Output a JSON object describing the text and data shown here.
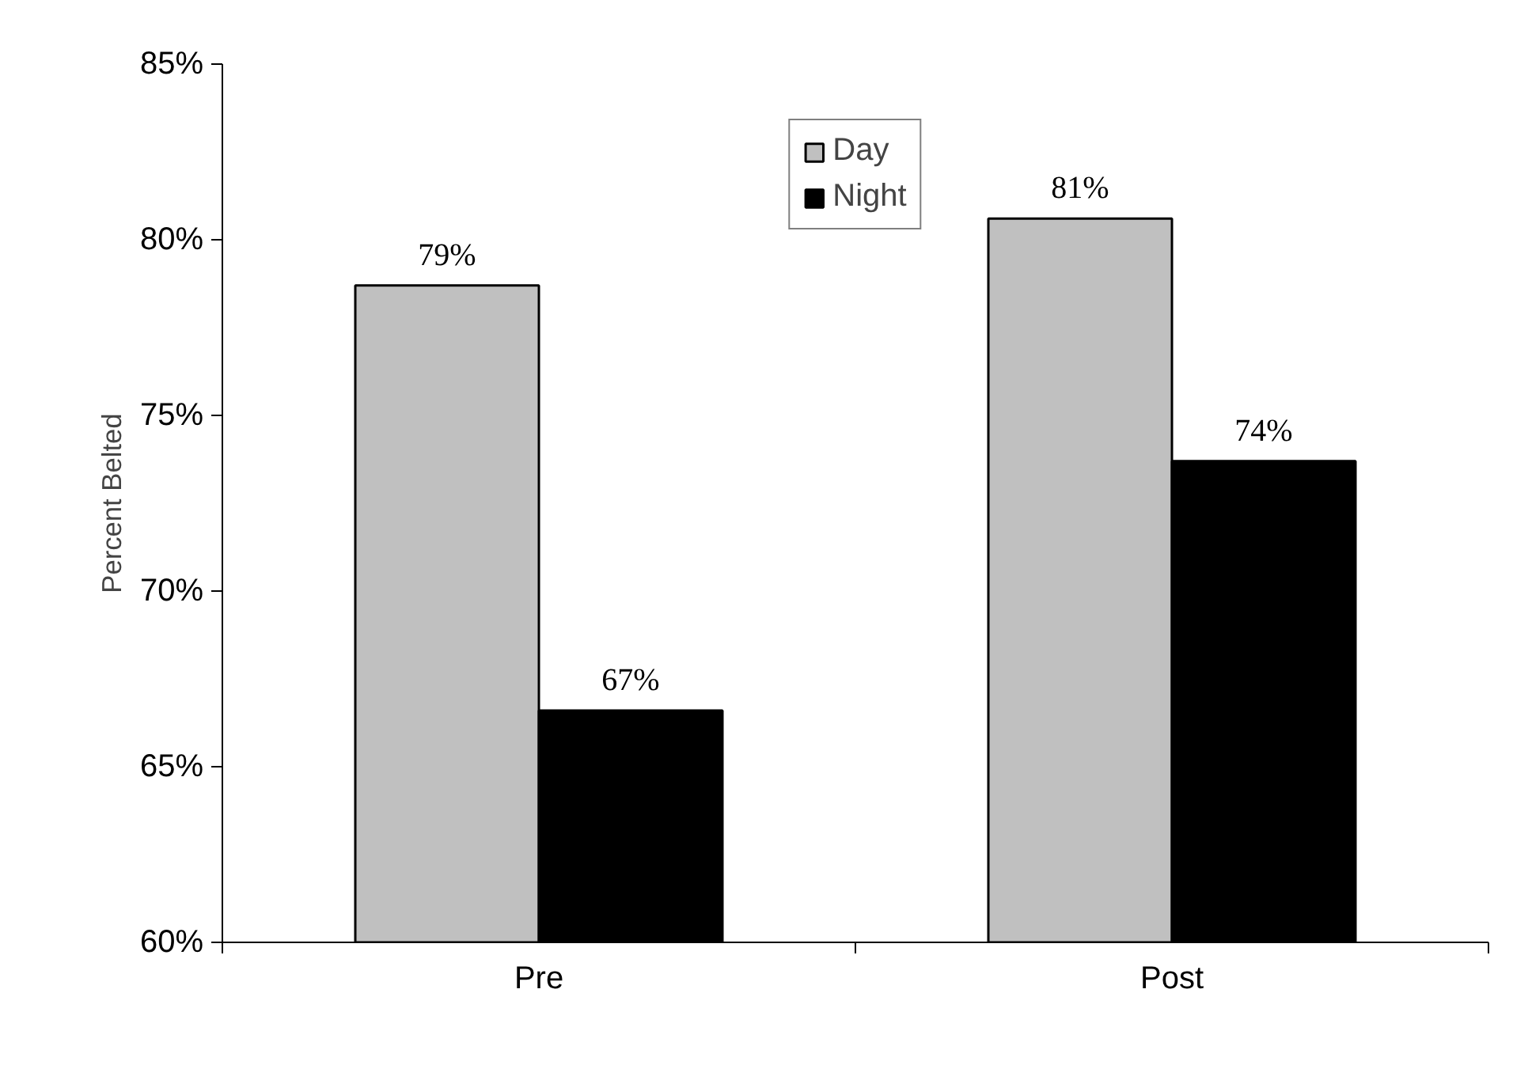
{
  "chart_data": {
    "type": "bar",
    "ylabel": "Percent Belted",
    "categories": [
      "Pre",
      "Post"
    ],
    "series": [
      {
        "name": "Day",
        "color": "#c0c0c0",
        "values": [
          78.7,
          80.6
        ],
        "value_labels": [
          "79%",
          "81%"
        ]
      },
      {
        "name": "Night",
        "color": "#000000",
        "values": [
          66.6,
          73.7
        ],
        "value_labels": [
          "67%",
          "74%"
        ]
      }
    ],
    "ylim": [
      60,
      85
    ],
    "yticks": [
      {
        "value": 60,
        "label": "60%"
      },
      {
        "value": 65,
        "label": "65%"
      },
      {
        "value": 70,
        "label": "70%"
      },
      {
        "value": 75,
        "label": "75%"
      },
      {
        "value": 80,
        "label": "80%"
      },
      {
        "value": 85,
        "label": "85%"
      }
    ],
    "grid": false,
    "legend": "top"
  }
}
